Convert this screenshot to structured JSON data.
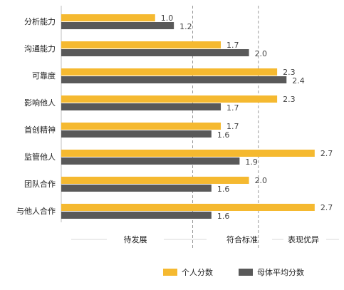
{
  "chart_data": {
    "type": "bar",
    "orientation": "horizontal",
    "categories": [
      "分析能力",
      "沟通能力",
      "可靠度",
      "影响他人",
      "首创精神",
      "监管他人",
      "团队合作",
      "与他人合作"
    ],
    "series": [
      {
        "name": "个人分数",
        "values": [
          1.0,
          1.7,
          2.3,
          2.3,
          1.7,
          2.7,
          2.0,
          2.7
        ]
      },
      {
        "name": "母体平均分数",
        "values": [
          1.2,
          2.0,
          2.4,
          1.7,
          1.6,
          1.9,
          1.6,
          1.6
        ]
      }
    ],
    "value_labels": {
      "个人分数": [
        "1.0",
        "1.7",
        "2.3",
        "2.3",
        "1.7",
        "2.7",
        "2.0",
        "2.7"
      ],
      "母体平均分数": [
        "1.2",
        "2.0",
        "2.4",
        "1.7",
        "1.6",
        "1.9",
        "1.6",
        "1.6"
      ]
    },
    "xlim": [
      0,
      2.8
    ],
    "reference_lines": [
      1.4,
      2.1
    ],
    "zones": [
      "待发展",
      "符合标准",
      "表现优异"
    ],
    "colors": {
      "个人分数": "#F5B930",
      "母体平均分数": "#595959"
    },
    "legend": "bottom",
    "grid": false
  }
}
